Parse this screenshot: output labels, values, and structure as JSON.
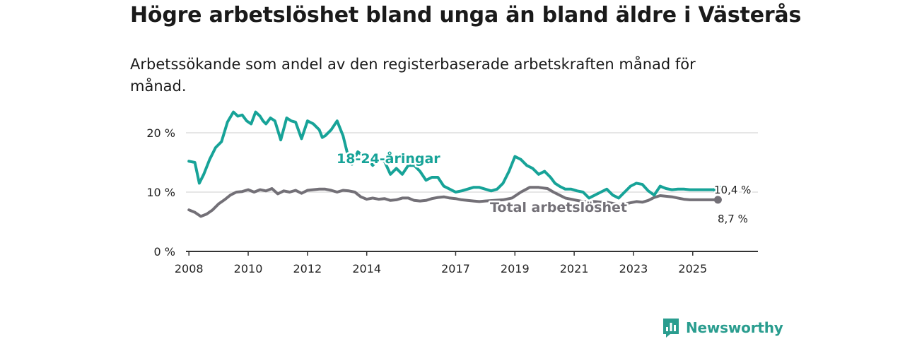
{
  "header": {
    "title": "Högre arbetslöshet bland unga än bland äldre i Västerås",
    "subtitle": "Arbetssökande som andel av den registerbaserade arbetskraften månad för månad."
  },
  "brand": {
    "name": "Newsworthy",
    "icon": "bar-chart-speech-icon"
  },
  "colors": {
    "youth": "#17a398",
    "total": "#737077",
    "grid": "#d6d6d6",
    "axis": "#333333",
    "brand": "#2a9d8f"
  },
  "chart_data": {
    "type": "line",
    "title": "Högre arbetslöshet bland unga än bland äldre i Västerås",
    "subtitle": "Arbetssökande som andel av den registerbaserade arbetskraften månad för månad.",
    "xlabel": "",
    "ylabel": "",
    "xlim": [
      2007.9,
      2027.2
    ],
    "ylim": [
      0,
      25
    ],
    "x_ticks": [
      2008,
      2010,
      2012,
      2014,
      2017,
      2019,
      2021,
      2023,
      2025
    ],
    "x_tick_labels": [
      "2008",
      "2010",
      "2012",
      "2014",
      "2017",
      "2019",
      "2021",
      "2023",
      "2025"
    ],
    "y_ticks": [
      0,
      10,
      20
    ],
    "y_tick_labels": [
      "0 %",
      "10 %",
      "20 %"
    ],
    "grid": true,
    "series": [
      {
        "name": "18-24-åringar",
        "label": "18-24-åringar",
        "end_label": "10,4 %",
        "x": [
          2008.0,
          2008.2,
          2008.35,
          2008.5,
          2008.7,
          2008.9,
          2009.1,
          2009.3,
          2009.5,
          2009.65,
          2009.8,
          2009.95,
          2010.1,
          2010.25,
          2010.4,
          2010.5,
          2010.6,
          2010.75,
          2010.9,
          2011.1,
          2011.3,
          2011.45,
          2011.6,
          2011.8,
          2012.0,
          2012.2,
          2012.4,
          2012.5,
          2012.6,
          2012.8,
          2013.0,
          2013.2,
          2013.4,
          2013.5,
          2013.7,
          2013.9,
          2014.0,
          2014.2,
          2014.4,
          2014.6,
          2014.8,
          2015.0,
          2015.2,
          2015.4,
          2015.6,
          2015.8,
          2016.0,
          2016.2,
          2016.4,
          2016.6,
          2016.8,
          2017.0,
          2017.2,
          2017.4,
          2017.6,
          2017.8,
          2018.0,
          2018.2,
          2018.4,
          2018.6,
          2018.8,
          2019.0,
          2019.2,
          2019.4,
          2019.6,
          2019.8,
          2020.0,
          2020.2,
          2020.35,
          2020.5,
          2020.7,
          2020.9,
          2021.1,
          2021.3,
          2021.5,
          2021.7,
          2021.9,
          2022.1,
          2022.3,
          2022.5,
          2022.7,
          2022.9,
          2023.1,
          2023.3,
          2023.5,
          2023.7,
          2023.9,
          2024.1,
          2024.3,
          2024.5,
          2024.7,
          2024.9,
          2025.1,
          2025.3,
          2025.4,
          2025.55,
          2025.7,
          2025.85
        ],
        "values": [
          15.2,
          15.0,
          11.5,
          13.0,
          15.5,
          17.5,
          18.5,
          21.8,
          23.5,
          22.8,
          23.0,
          22.0,
          21.5,
          23.5,
          22.8,
          22.0,
          21.5,
          22.5,
          22.0,
          18.8,
          22.5,
          22.0,
          21.8,
          19.0,
          22.0,
          21.5,
          20.5,
          19.2,
          19.5,
          20.5,
          22.0,
          19.5,
          15.5,
          14.7,
          16.8,
          16.0,
          15.8,
          14.5,
          15.5,
          15.2,
          13.0,
          14.0,
          13.0,
          14.5,
          14.5,
          13.5,
          12.0,
          12.5,
          12.5,
          11.0,
          10.5,
          10.0,
          10.2,
          10.5,
          10.8,
          10.8,
          10.5,
          10.2,
          10.5,
          11.5,
          13.5,
          16.0,
          15.5,
          14.5,
          14.0,
          13.0,
          13.5,
          12.5,
          11.5,
          11.0,
          10.5,
          10.5,
          10.2,
          10.0,
          9.0,
          9.5,
          10.0,
          10.5,
          9.5,
          9.0,
          10.0,
          11.0,
          11.5,
          11.3,
          10.2,
          9.5,
          11.0,
          10.6,
          10.4,
          10.5,
          10.5,
          10.4,
          10.4,
          10.4,
          10.4,
          10.4,
          10.4,
          10.4
        ]
      },
      {
        "name": "Total arbetslöshet",
        "label": "Total arbetslöshet",
        "end_label": "8,7 %",
        "x": [
          2008.0,
          2008.2,
          2008.4,
          2008.6,
          2008.8,
          2009.0,
          2009.2,
          2009.4,
          2009.6,
          2009.8,
          2010.0,
          2010.2,
          2010.4,
          2010.6,
          2010.8,
          2011.0,
          2011.2,
          2011.4,
          2011.6,
          2011.8,
          2012.0,
          2012.2,
          2012.4,
          2012.6,
          2012.8,
          2013.0,
          2013.2,
          2013.4,
          2013.6,
          2013.8,
          2014.0,
          2014.2,
          2014.4,
          2014.6,
          2014.8,
          2015.0,
          2015.2,
          2015.4,
          2015.6,
          2015.8,
          2016.0,
          2016.2,
          2016.4,
          2016.6,
          2016.8,
          2017.0,
          2017.2,
          2017.4,
          2017.6,
          2017.8,
          2018.0,
          2018.3,
          2018.6,
          2018.9,
          2019.2,
          2019.5,
          2019.8,
          2020.1,
          2020.3,
          2020.5,
          2020.7,
          2020.9,
          2021.1,
          2021.3,
          2021.5,
          2021.7,
          2021.9,
          2022.1,
          2022.3,
          2022.5,
          2022.7,
          2022.9,
          2023.1,
          2023.3,
          2023.5,
          2023.7,
          2023.9,
          2024.1,
          2024.3,
          2024.5,
          2024.7,
          2024.9,
          2025.1,
          2025.3,
          2025.5,
          2025.7,
          2025.85
        ],
        "values": [
          7.0,
          6.6,
          5.9,
          6.3,
          7.0,
          8.0,
          8.7,
          9.5,
          10.0,
          10.1,
          10.4,
          10.0,
          10.4,
          10.2,
          10.6,
          9.7,
          10.2,
          10.0,
          10.3,
          9.8,
          10.3,
          10.4,
          10.5,
          10.5,
          10.3,
          10.0,
          10.3,
          10.2,
          10.0,
          9.2,
          8.8,
          9.0,
          8.8,
          8.9,
          8.6,
          8.7,
          9.0,
          9.0,
          8.6,
          8.5,
          8.6,
          8.9,
          9.1,
          9.2,
          9.0,
          8.9,
          8.7,
          8.6,
          8.5,
          8.4,
          8.5,
          8.6,
          8.7,
          9.0,
          10.0,
          10.8,
          10.8,
          10.6,
          10.0,
          9.5,
          9.0,
          8.8,
          8.6,
          8.4,
          8.4,
          8.4,
          8.3,
          8.3,
          8.1,
          7.9,
          8.0,
          8.2,
          8.4,
          8.3,
          8.6,
          9.1,
          9.4,
          9.3,
          9.2,
          9.0,
          8.8,
          8.7,
          8.7,
          8.7,
          8.7,
          8.7,
          8.7
        ]
      }
    ]
  }
}
